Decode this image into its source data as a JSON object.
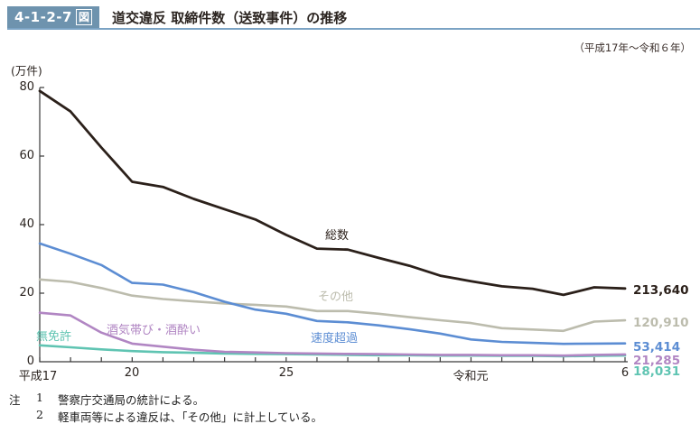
{
  "header": {
    "figure_no": "4-1-2-7",
    "figure_suffix": "図",
    "title": "道交違反 取締件数（送致事件）の推移",
    "period": "（平成17年～令和６年）",
    "accent_color": "#6e93ae",
    "underline_color": "#7ba3c4"
  },
  "notes": {
    "prefix": "注",
    "items": [
      {
        "no": "1",
        "text": "警察庁交通局の統計による。"
      },
      {
        "no": "2",
        "text": "軽車両等による違反は、「その他」に計上している。"
      }
    ]
  },
  "chart_data": {
    "type": "line",
    "title": "道交違反 取締件数（送致事件）の推移",
    "unit_label": "(万件)",
    "ylabel": "万件",
    "ylim": [
      0,
      80
    ],
    "yticks": [
      80,
      60,
      40,
      20,
      0
    ],
    "n_points": 20,
    "x_range_label": "平成17年～令和6年",
    "x_tick_labels": [
      {
        "index": 0,
        "label": "平成17"
      },
      {
        "index": 3,
        "label": "20"
      },
      {
        "index": 8,
        "label": "25"
      },
      {
        "index": 14,
        "label": "令和元"
      },
      {
        "index": 19,
        "label": "6"
      }
    ],
    "grid": false,
    "legend_position": "inline-annotations",
    "series": [
      {
        "name": "その他",
        "color": "#bcbcad",
        "values": [
          24.0,
          23.3,
          21.5,
          19.3,
          18.3,
          17.6,
          17.0,
          16.6,
          16.1,
          14.8,
          14.8,
          14.0,
          13.0,
          12.1,
          11.3,
          9.8,
          9.4,
          9.0,
          11.7,
          12.091
        ],
        "end_label": "120,910"
      },
      {
        "name": "速度超過",
        "color": "#5c8dd3",
        "values": [
          34.5,
          31.5,
          28.2,
          23.0,
          22.5,
          20.3,
          17.5,
          15.2,
          14.0,
          11.9,
          11.5,
          10.6,
          9.5,
          8.2,
          6.5,
          5.8,
          5.5,
          5.2,
          5.3,
          5.3414
        ],
        "end_label": "53,414"
      },
      {
        "name": "無免許",
        "color": "#5fc4b2",
        "values": [
          4.8,
          4.2,
          3.6,
          3.1,
          2.8,
          2.6,
          2.4,
          2.3,
          2.2,
          2.1,
          2.0,
          1.9,
          1.9,
          1.8,
          1.8,
          1.7,
          1.7,
          1.6,
          1.7,
          1.8031
        ],
        "end_label": "18,031"
      },
      {
        "name": "酒気帯び・酒酔い",
        "color": "#b186c3",
        "values": [
          14.3,
          13.5,
          8.5,
          5.3,
          4.4,
          3.5,
          2.9,
          2.7,
          2.5,
          2.4,
          2.3,
          2.2,
          2.1,
          2.0,
          2.0,
          1.9,
          1.9,
          1.8,
          2.0,
          2.1285
        ],
        "end_label": "21,285"
      },
      {
        "name": "総数",
        "color": "#2b201a",
        "values": [
          79.0,
          73.0,
          62.5,
          52.5,
          51.0,
          47.5,
          44.5,
          41.5,
          37.0,
          33.0,
          32.7,
          30.3,
          28.0,
          25.1,
          23.5,
          22.0,
          21.3,
          19.5,
          21.7,
          21.364
        ],
        "end_label": "213,640"
      }
    ]
  }
}
